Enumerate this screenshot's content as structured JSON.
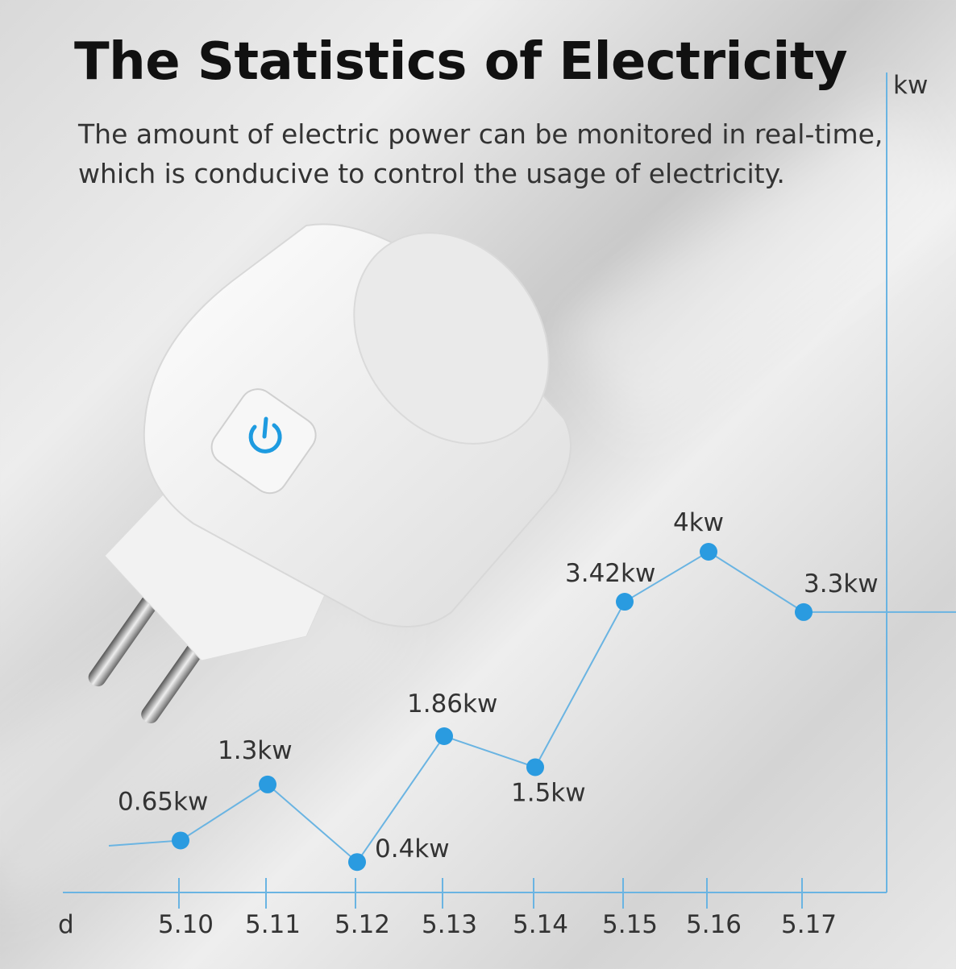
{
  "header": {
    "title": "The Statistics of Electricity",
    "subtitle_line1": "The amount of electric power can be monitored in real-time,",
    "subtitle_line2": "which is conducive to control the usage of electricity."
  },
  "product": {
    "icon": "power-icon",
    "accent": "#1e9be0"
  },
  "chart_data": {
    "type": "line",
    "xlabel": "d",
    "ylabel": "kw",
    "categories": [
      "5.10",
      "5.11",
      "5.12",
      "5.13",
      "5.14",
      "5.15",
      "5.16",
      "5.17"
    ],
    "series": [
      {
        "values": [
          0.65,
          1.3,
          0.4,
          1.86,
          1.5,
          3.42,
          4,
          3.3
        ]
      }
    ],
    "data_labels": [
      "0.65kw",
      "1.3kw",
      "0.4kw",
      "1.86kw",
      "1.5kw",
      "3.42kw",
      "4kw",
      "3.3kw"
    ],
    "grid": false,
    "line_color": "#6ab4e2",
    "marker_color": "#2a9be0",
    "axis_color": "#6ab4e2"
  }
}
